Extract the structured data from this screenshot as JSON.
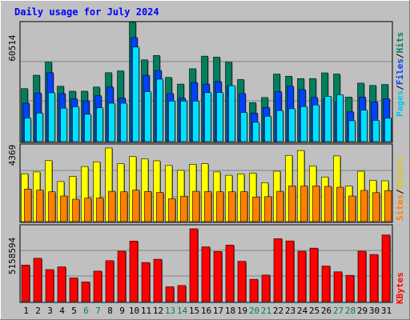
{
  "title": "Daily usage for July 2024",
  "colors": {
    "background": "#c0c0c0",
    "title": "#0000ff",
    "hits": "#007f5f",
    "files": "#0040ff",
    "pages": "#00e0ff",
    "visits": "#ffff00",
    "sites": "#ff8000",
    "kbytes": "#ff0000",
    "weekday_label": "#000000",
    "weekend_label": "#007f5f"
  },
  "chart_data": [
    {
      "type": "bar",
      "name": "hits-files-pages",
      "categories": [
        "1",
        "2",
        "3",
        "4",
        "5",
        "6",
        "7",
        "8",
        "9",
        "10",
        "11",
        "12",
        "13",
        "14",
        "15",
        "16",
        "17",
        "18",
        "19",
        "20",
        "21",
        "22",
        "23",
        "24",
        "25",
        "26",
        "27",
        "28",
        "29",
        "30",
        "31"
      ],
      "weekend_days": [
        "6",
        "7",
        "13",
        "14",
        "20",
        "21",
        "27",
        "28"
      ],
      "ymax_label": "60514",
      "ylim": [
        0,
        60514
      ],
      "legend": [
        "Pages",
        "/",
        "Files",
        "/",
        "Hits"
      ],
      "series": [
        {
          "name": "Hits",
          "values": [
            26900,
            33700,
            40300,
            28100,
            25600,
            25600,
            27700,
            35000,
            35900,
            60514,
            41500,
            43700,
            32600,
            29200,
            37000,
            43400,
            42900,
            40300,
            31500,
            19800,
            22400,
            34300,
            33200,
            32000,
            32000,
            34900,
            34300,
            22600,
            29700,
            28500,
            29000
          ]
        },
        {
          "name": "Files",
          "values": [
            19500,
            24700,
            35000,
            24400,
            21700,
            20700,
            23300,
            27700,
            22100,
            52800,
            33700,
            36100,
            24400,
            22000,
            30000,
            29200,
            30500,
            28400,
            24400,
            14500,
            17300,
            25400,
            28100,
            26400,
            22400,
            21700,
            20000,
            15100,
            22600,
            20200,
            21700
          ]
        },
        {
          "name": "Pages",
          "values": [
            12000,
            14500,
            24800,
            17000,
            17700,
            13900,
            17200,
            19500,
            19500,
            48000,
            25400,
            31700,
            20600,
            20600,
            20600,
            24900,
            24900,
            28400,
            14800,
            9800,
            12900,
            15800,
            16700,
            17800,
            18600,
            23000,
            23800,
            10600,
            16000,
            10800,
            12000
          ]
        }
      ]
    },
    {
      "type": "bar",
      "name": "visits-sites",
      "categories": [
        "1",
        "2",
        "3",
        "4",
        "5",
        "6",
        "7",
        "8",
        "9",
        "10",
        "11",
        "12",
        "13",
        "14",
        "15",
        "16",
        "17",
        "18",
        "19",
        "20",
        "21",
        "22",
        "23",
        "24",
        "25",
        "26",
        "27",
        "28",
        "29",
        "30",
        "31"
      ],
      "ymax_label": "4369",
      "ylim": [
        0,
        4369
      ],
      "legend": [
        "Sites",
        "/",
        "Visits"
      ],
      "series": [
        {
          "name": "Visits",
          "values": [
            2840,
            2950,
            3620,
            2380,
            2680,
            3270,
            3550,
            4369,
            3440,
            3860,
            3720,
            3610,
            3330,
            3040,
            3400,
            3440,
            2950,
            2750,
            2830,
            2880,
            2310,
            2990,
            3930,
            4220,
            3310,
            2650,
            3900,
            2120,
            2990,
            2450,
            2420
          ]
        },
        {
          "name": "Sites",
          "values": [
            1930,
            1870,
            1770,
            1520,
            1330,
            1390,
            1400,
            1800,
            1770,
            1870,
            1790,
            1730,
            1360,
            1510,
            1800,
            1780,
            1770,
            1770,
            1780,
            1460,
            1480,
            1800,
            2120,
            2110,
            2120,
            2090,
            2040,
            1520,
            1850,
            1720,
            1840
          ]
        }
      ]
    },
    {
      "type": "bar",
      "name": "kbytes",
      "categories": [
        "1",
        "2",
        "3",
        "4",
        "5",
        "6",
        "7",
        "8",
        "9",
        "10",
        "11",
        "12",
        "13",
        "14",
        "15",
        "16",
        "17",
        "18",
        "19",
        "20",
        "21",
        "22",
        "23",
        "24",
        "25",
        "26",
        "27",
        "28",
        "29",
        "30",
        "31"
      ],
      "ymax_label": "5158594",
      "ylim": [
        0,
        5158594
      ],
      "legend": [
        "KBytes"
      ],
      "series": [
        {
          "name": "KBytes",
          "values": [
            2590000,
            3070000,
            2270000,
            2460000,
            1680000,
            1390000,
            2160000,
            2900000,
            3570000,
            4290000,
            2770000,
            3000000,
            1050000,
            1140000,
            5158594,
            3880000,
            3550000,
            4010000,
            2850000,
            1580000,
            1880000,
            4460000,
            4300000,
            3570000,
            3790000,
            2520000,
            2110000,
            1860000,
            3570000,
            3340000,
            4720000
          ]
        }
      ]
    }
  ]
}
